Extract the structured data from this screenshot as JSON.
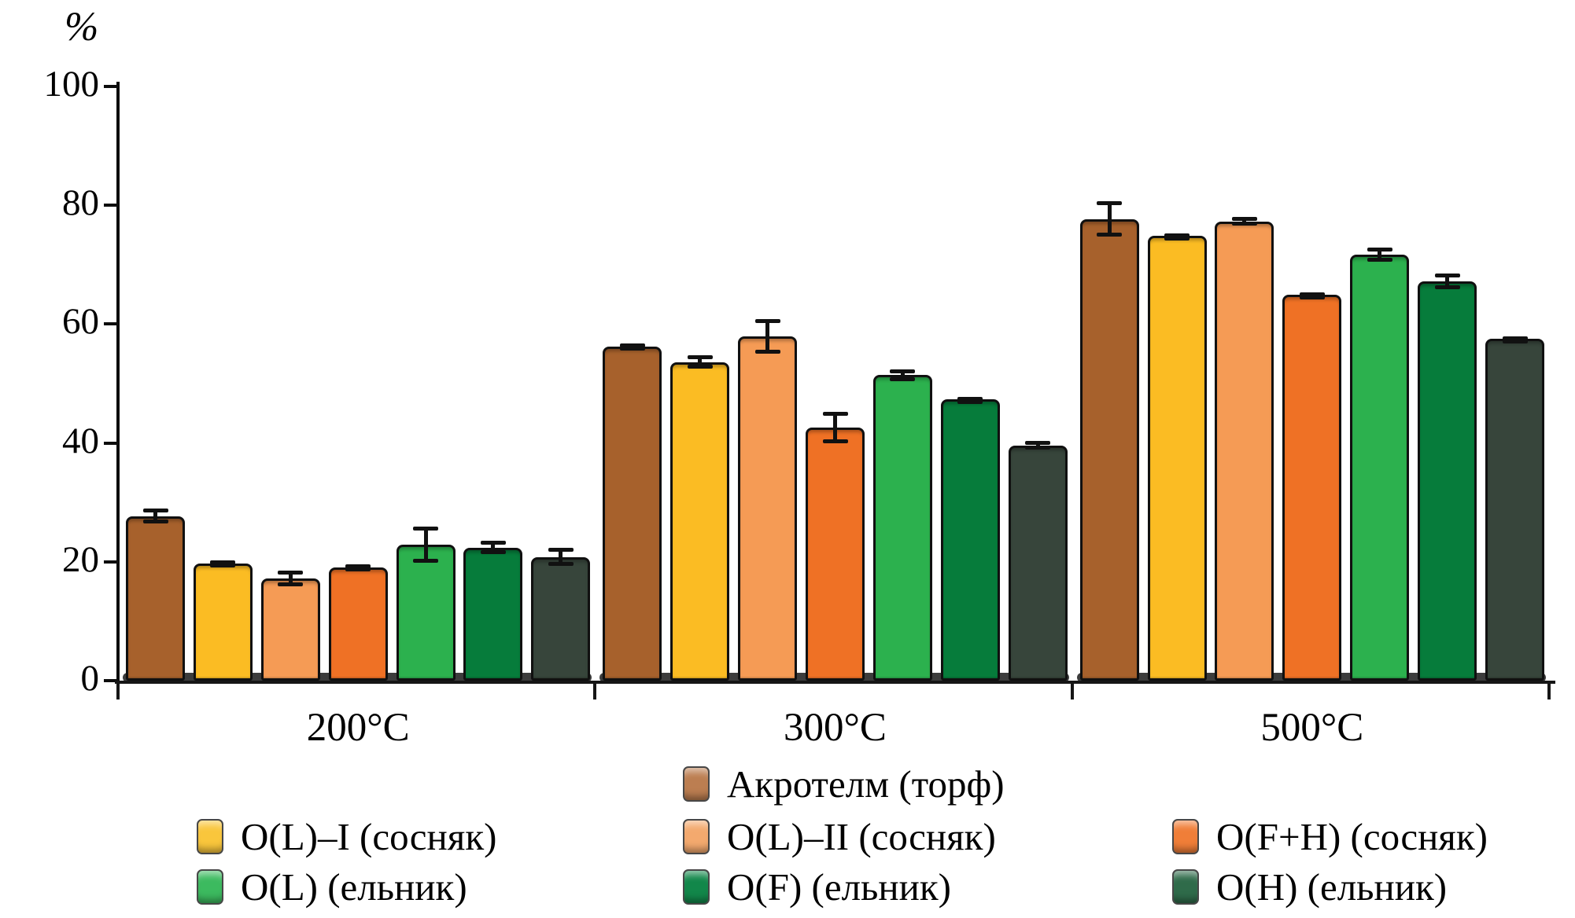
{
  "chart_data": {
    "type": "bar",
    "title": "",
    "xlabel": "",
    "ylabel": "%",
    "ylim": [
      0,
      100
    ],
    "yticks": [
      0,
      20,
      40,
      60,
      80,
      100
    ],
    "grid": false,
    "legend_position": "bottom",
    "categories": [
      "200°C",
      "300°C",
      "500°C"
    ],
    "series": [
      {
        "name": "Акротелм (торф)",
        "color": "#A7612C",
        "legend_color": "#BC7E51",
        "values": [
          27.7,
          56.2,
          77.7
        ],
        "errors": [
          1.3,
          0.5,
          3.0
        ]
      },
      {
        "name": "O(L)–I (сосняк)",
        "color": "#FBBC23",
        "legend_color": "#F9C63C",
        "values": [
          19.7,
          53.6,
          74.9
        ],
        "errors": [
          0.5,
          1.1,
          0.3
        ]
      },
      {
        "name": "O(L)–II (сосняк)",
        "color": "#F59B55",
        "legend_color": "#F3A96E",
        "values": [
          17.2,
          57.9,
          77.3
        ],
        "errors": [
          1.3,
          2.9,
          0.7
        ]
      },
      {
        "name": "O(F+H) (сосняк)",
        "color": "#EF7125",
        "legend_color": "#F07E38",
        "values": [
          19.1,
          42.6,
          65.0
        ],
        "errors": [
          0.5,
          2.6,
          0.3
        ]
      },
      {
        "name": "O(L) (ельник)",
        "color": "#2CB14E",
        "legend_color": "#3CBA5F",
        "values": [
          22.9,
          51.4,
          71.7
        ],
        "errors": [
          3.0,
          1.0,
          1.2
        ]
      },
      {
        "name": "O(F) (ельник)",
        "color": "#067C3B",
        "legend_color": "#12874A",
        "values": [
          22.4,
          47.3,
          67.2
        ],
        "errors": [
          1.1,
          0.4,
          1.3
        ]
      },
      {
        "name": "O(H) (ельник)",
        "color": "#37453B",
        "legend_color": "#2F6B4A",
        "values": [
          20.8,
          39.6,
          57.6
        ],
        "errors": [
          1.5,
          0.7,
          0.4
        ]
      }
    ]
  }
}
